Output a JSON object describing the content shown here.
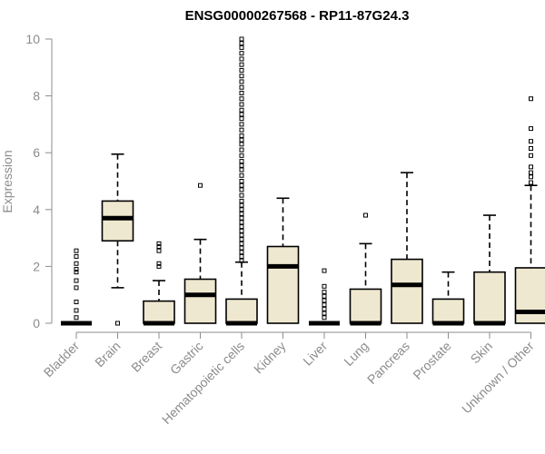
{
  "chart_data": {
    "type": "box",
    "title": "ENSG00000267568 - RP11-87G24.3",
    "xlabel": "",
    "ylabel": "Expression",
    "ylim": [
      0,
      10
    ],
    "yticks": [
      0,
      2,
      4,
      6,
      8,
      10
    ],
    "box_fill": "#efe8d0",
    "categories": [
      "Bladder",
      "Brain",
      "Breast",
      "Gastric",
      "Hematopoietic cells",
      "Kidney",
      "Liver",
      "Lung",
      "Pancreas",
      "Prostate",
      "Skin",
      "Unknown / Other"
    ],
    "boxes": [
      {
        "min": 0,
        "q1": 0,
        "median": 0,
        "q3": 0,
        "max": 0,
        "outliers": [
          0.2,
          0.45,
          0.75,
          1.25,
          1.5,
          1.8,
          1.9,
          2.1,
          2.35,
          2.55
        ]
      },
      {
        "min": 1.25,
        "q1": 2.9,
        "median": 3.7,
        "q3": 4.3,
        "max": 5.95,
        "outliers": [
          0
        ]
      },
      {
        "min": 0,
        "q1": 0,
        "median": 0,
        "q3": 0.78,
        "max": 1.5,
        "outliers": [
          2.0,
          2.1,
          2.55,
          2.7,
          2.8
        ]
      },
      {
        "min": 0,
        "q1": 0,
        "median": 1.0,
        "q3": 1.55,
        "max": 2.95,
        "outliers": [
          4.85
        ]
      },
      {
        "min": 0,
        "q1": 0,
        "median": 0,
        "q3": 0.85,
        "max": 2.15,
        "outliers": [
          2.2,
          2.35,
          2.5,
          2.65,
          2.8,
          2.95,
          3.1,
          3.25,
          3.4,
          3.55,
          3.7,
          3.85,
          4.0,
          4.15,
          4.3,
          4.5,
          4.7,
          4.85,
          5.0,
          5.2,
          5.4,
          5.55,
          5.7,
          5.9,
          6.1,
          6.3,
          6.45,
          6.6,
          6.8,
          7.0,
          7.2,
          7.35,
          7.5,
          7.7,
          7.9,
          8.1,
          8.3,
          8.5,
          8.7,
          8.9,
          9.1,
          9.3,
          9.5,
          9.7,
          9.85,
          10.0
        ]
      },
      {
        "min": 0,
        "q1": 0,
        "median": 2.0,
        "q3": 2.7,
        "max": 4.4,
        "outliers": []
      },
      {
        "min": 0,
        "q1": 0,
        "median": 0,
        "q3": 0,
        "max": 0,
        "outliers": [
          0.2,
          0.35,
          0.5,
          0.65,
          0.8,
          0.95,
          1.1,
          1.3,
          1.85
        ]
      },
      {
        "min": 0,
        "q1": 0,
        "median": 0,
        "q3": 1.2,
        "max": 2.8,
        "outliers": [
          3.8
        ]
      },
      {
        "min": 0,
        "q1": 0,
        "median": 1.35,
        "q3": 2.25,
        "max": 5.3,
        "outliers": []
      },
      {
        "min": 0,
        "q1": 0,
        "median": 0,
        "q3": 0.85,
        "max": 1.8,
        "outliers": []
      },
      {
        "min": 0,
        "q1": 0,
        "median": 0,
        "q3": 1.8,
        "max": 3.8,
        "outliers": []
      },
      {
        "min": 0,
        "q1": 0,
        "median": 0.4,
        "q3": 1.95,
        "max": 4.85,
        "outliers": [
          4.95,
          5.15,
          5.3,
          5.5,
          5.9,
          6.15,
          6.4,
          6.85,
          7.9
        ]
      }
    ]
  }
}
